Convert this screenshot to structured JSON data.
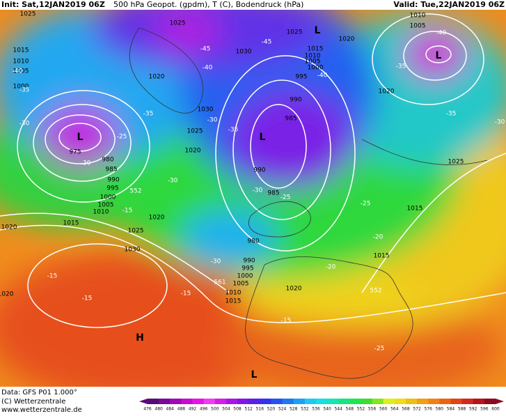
{
  "header": {
    "init": "Init: Sat,12JAN2019 06Z",
    "title": "500 hPa Geopot. (gpdm), T (C), Bodendruck (hPa)",
    "valid": "Valid: Tue,22JAN2019 06Z"
  },
  "map": {
    "labels": [
      "1025",
      "1025",
      "1025",
      "1010",
      "1005",
      "1015",
      "1010",
      "1005",
      "1000",
      "975",
      "980",
      "985",
      "990",
      "995",
      "1000",
      "1005",
      "1010",
      "1015",
      "1020",
      "1025",
      "1030",
      "1020",
      "1030",
      "1020",
      "1030",
      "1025",
      "1020",
      "1015",
      "1010",
      "1005",
      "1000",
      "995",
      "990",
      "985",
      "990",
      "985",
      "980",
      "990",
      "995",
      "1000",
      "1005",
      "1010",
      "1015",
      "1020",
      "1015",
      "1015",
      "1020",
      "1020",
      "1025",
      "1020"
    ],
    "temps": [
      "-40",
      "-35",
      "-30",
      "-45",
      "-40",
      "-35",
      "-30",
      "-25",
      "-30",
      "-35",
      "-45",
      "-40",
      "-40",
      "-35",
      "-35",
      "-30",
      "-30",
      "-30",
      "-25",
      "-15",
      "-25",
      "-20",
      "-20",
      "-15",
      "-15",
      "-15",
      "-15",
      "-25",
      "-30",
      "552",
      "552",
      "561"
    ],
    "centers": [
      "L",
      "L",
      "L",
      "L",
      "H",
      "L"
    ]
  },
  "legend": {
    "levels": [
      476,
      480,
      484,
      488,
      492,
      496,
      500,
      504,
      508,
      512,
      516,
      520,
      524,
      528,
      532,
      536,
      540,
      544,
      548,
      552,
      556,
      560,
      564,
      568,
      572,
      576,
      580,
      584,
      588,
      592,
      596,
      600
    ],
    "colors": [
      "#5a0a78",
      "#780a96",
      "#a00ab4",
      "#c80ad2",
      "#e614e6",
      "#f03cf0",
      "#d21ee6",
      "#aa14e6",
      "#8214e6",
      "#5a1ee6",
      "#3232f0",
      "#2850f0",
      "#1e78f0",
      "#1ea0f0",
      "#1ec8f0",
      "#14e1e1",
      "#14e6b4",
      "#14e682",
      "#1ee650",
      "#3cdc32",
      "#82e61e",
      "#dcf01e",
      "#f0dc14",
      "#f0be14",
      "#f0a014",
      "#f08214",
      "#eb6414",
      "#e14614",
      "#d2281e",
      "#b4141e",
      "#8c0a1e"
    ]
  },
  "footer": {
    "data": "Data: GFS P01 1.000°",
    "copyright": "(C) Wetterzentrale",
    "url": "www.wetterzentrale.de"
  }
}
